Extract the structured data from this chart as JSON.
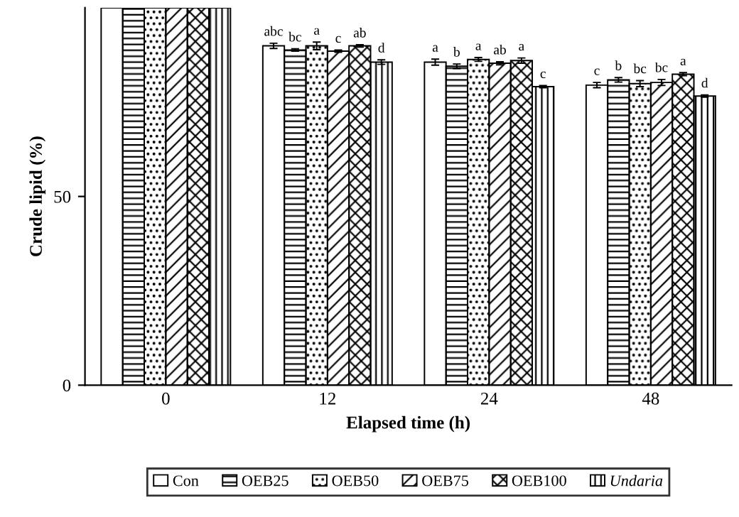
{
  "chart_data": {
    "type": "bar",
    "xlabel": "Elapsed time (h)",
    "ylabel": "Crude lipid (%)",
    "categories": [
      "0",
      "12",
      "24",
      "48"
    ],
    "series": [
      {
        "name": "Con",
        "color": "#ffffff",
        "values": [
          100,
          89.9,
          85.6,
          79.5
        ],
        "errors": [
          null,
          0.7,
          0.8,
          0.7
        ],
        "value_labels": [
          null,
          "abc",
          "a",
          "c"
        ]
      },
      {
        "name": "OEB25",
        "color": "#000000",
        "values": [
          100,
          88.8,
          84.5,
          80.9
        ],
        "errors": [
          null,
          0.3,
          0.6,
          0.6
        ],
        "value_labels": [
          null,
          "bc",
          "b",
          "b"
        ]
      },
      {
        "name": "OEB50",
        "color": "#000000",
        "values": [
          100,
          89.9,
          86.3,
          79.9
        ],
        "errors": [
          null,
          1.0,
          0.5,
          0.8
        ],
        "value_labels": [
          null,
          "a",
          "a",
          "bc"
        ]
      },
      {
        "name": "OEB75",
        "color": "#000000",
        "values": [
          100,
          88.5,
          85.3,
          80.2
        ],
        "errors": [
          null,
          0.3,
          0.4,
          0.8
        ],
        "value_labels": [
          null,
          "c",
          "ab",
          "bc"
        ]
      },
      {
        "name": "OEB100",
        "color": "#000000",
        "values": [
          100,
          89.9,
          86.0,
          82.4
        ],
        "errors": [
          null,
          0.3,
          0.7,
          0.4
        ],
        "value_labels": [
          null,
          "ab",
          "a",
          "a"
        ]
      },
      {
        "name": "Undaria",
        "color": "#000000",
        "values": [
          100,
          85.6,
          79.1,
          76.6
        ],
        "errors": [
          null,
          0.6,
          0.3,
          0.3
        ],
        "value_labels": [
          null,
          "d",
          "c",
          "d"
        ]
      }
    ],
    "ylim": [
      0,
      100
    ],
    "yticks": [
      0,
      50
    ],
    "grid": false,
    "legend": "bottom"
  }
}
